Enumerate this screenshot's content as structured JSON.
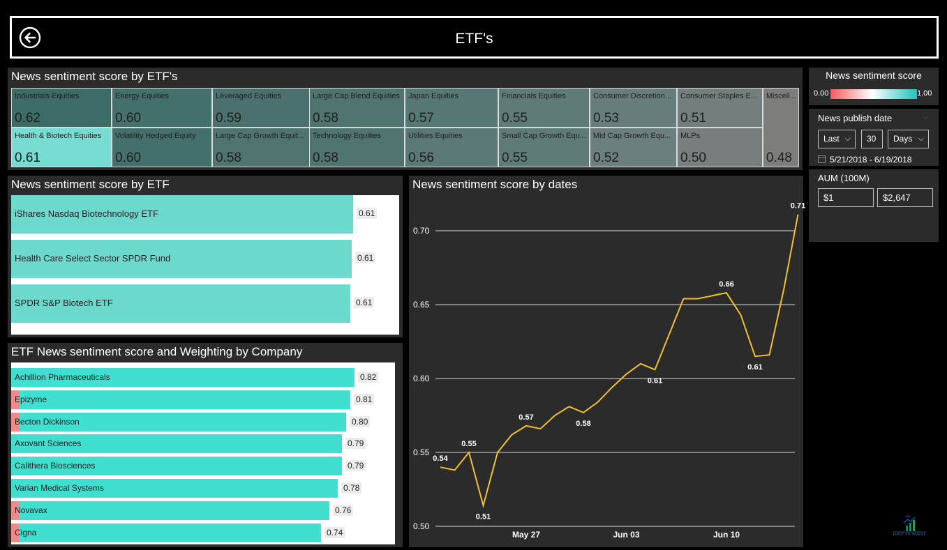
{
  "header": {
    "title": "ETF's"
  },
  "treemap": {
    "title": "News sentiment score by ETF's",
    "cells": [
      {
        "label": "Industrials Equities",
        "value": "0.62",
        "color": "#3d6b66"
      },
      {
        "label": "Energy Equities",
        "value": "0.60",
        "color": "#43706b"
      },
      {
        "label": "Leveraged Equities",
        "value": "0.59",
        "color": "#4a716d"
      },
      {
        "label": "Large Cap Blend Equities",
        "value": "0.58",
        "color": "#4f7470"
      },
      {
        "label": "Japan Equities",
        "value": "0.57",
        "color": "#567874"
      },
      {
        "label": "Financials Equities",
        "value": "0.55",
        "color": "#5f7b78"
      },
      {
        "label": "Consumer Discretion...",
        "value": "0.53",
        "color": "#687e7c"
      },
      {
        "label": "Consumer Staples E...",
        "value": "0.51",
        "color": "#737f7e"
      },
      {
        "label": "Miscell...",
        "value": "0.48",
        "color": "#7d7d7c"
      },
      {
        "label": "Health & Biotech Equities",
        "value": "0.61",
        "color": "#79dcd3"
      },
      {
        "label": "Volatility Hedged Equity",
        "value": "0.60",
        "color": "#43706b"
      },
      {
        "label": "Large Cap Growth Equit...",
        "value": "0.58",
        "color": "#4f7470"
      },
      {
        "label": "Technology Equities",
        "value": "0.58",
        "color": "#4f7470"
      },
      {
        "label": "Utilities Equities",
        "value": "0.56",
        "color": "#5a7976"
      },
      {
        "label": "Small Cap Growth Equ...",
        "value": "0.55",
        "color": "#5f7b78"
      },
      {
        "label": "Mid Cap Growth Equ...",
        "value": "0.52",
        "color": "#6c7e7d"
      },
      {
        "label": "MLPs",
        "value": "0.50",
        "color": "#787e7d"
      }
    ]
  },
  "etf_panel": {
    "title": "News sentiment score by ETF",
    "items": [
      {
        "label": "iShares Nasdaq Biotechnology ETF",
        "value": 0.61,
        "value_text": "0.61"
      },
      {
        "label": "Health Care Select Sector SPDR Fund",
        "value": 0.61,
        "value_text": "0.61"
      },
      {
        "label": "SPDR S&P Biotech ETF",
        "value": 0.61,
        "value_text": "0.61"
      }
    ]
  },
  "company_panel": {
    "title": "ETF News sentiment score and Weighting by Company",
    "items": [
      {
        "label": "Achillion Pharmaceuticals",
        "value": 0.82,
        "value_text": "0.82",
        "negative_marker": false
      },
      {
        "label": "Epizyme",
        "value": 0.81,
        "value_text": "0.81",
        "negative_marker": true
      },
      {
        "label": "Becton Dickinson",
        "value": 0.8,
        "value_text": "0.80",
        "negative_marker": true
      },
      {
        "label": "Axovant Sciences",
        "value": 0.79,
        "value_text": "0.79",
        "negative_marker": false
      },
      {
        "label": "Calithera Biosciences",
        "value": 0.79,
        "value_text": "0.79",
        "negative_marker": false
      },
      {
        "label": "Varian Medical Systems",
        "value": 0.78,
        "value_text": "0.78",
        "negative_marker": false
      },
      {
        "label": "Novavax",
        "value": 0.76,
        "value_text": "0.76",
        "negative_marker": true
      },
      {
        "label": "Cigna",
        "value": 0.74,
        "value_text": "0.74",
        "negative_marker": true
      }
    ]
  },
  "chart_data": {
    "type": "line",
    "title": "News sentiment score by dates",
    "xlabel": "",
    "ylabel": "",
    "ylim": [
      0.5,
      0.72
    ],
    "yticks": [
      "0.70",
      "0.65",
      "0.60",
      "0.55",
      "0.50"
    ],
    "xticks": [
      {
        "date": "2018-05-27",
        "label": "May 27"
      },
      {
        "date": "2018-06-03",
        "label": "Jun 03"
      },
      {
        "date": "2018-06-10",
        "label": "Jun 10"
      }
    ],
    "grid": true,
    "line_color": "#f2c12e",
    "points": [
      {
        "x": "2018-05-21",
        "y": 0.54,
        "label": "0.54",
        "label_pos": "above"
      },
      {
        "x": "2018-05-22",
        "y": 0.538,
        "label": "",
        "label_pos": ""
      },
      {
        "x": "2018-05-23",
        "y": 0.55,
        "label": "0.55",
        "label_pos": "above"
      },
      {
        "x": "2018-05-24",
        "y": 0.514,
        "label": "0.51",
        "label_pos": "below"
      },
      {
        "x": "2018-05-25",
        "y": 0.55,
        "label": "",
        "label_pos": ""
      },
      {
        "x": "2018-05-26",
        "y": 0.562,
        "label": "",
        "label_pos": ""
      },
      {
        "x": "2018-05-27",
        "y": 0.568,
        "label": "0.57",
        "label_pos": "above"
      },
      {
        "x": "2018-05-28",
        "y": 0.566,
        "label": "",
        "label_pos": ""
      },
      {
        "x": "2018-05-29",
        "y": 0.575,
        "label": "",
        "label_pos": ""
      },
      {
        "x": "2018-05-30",
        "y": 0.581,
        "label": "",
        "label_pos": ""
      },
      {
        "x": "2018-05-31",
        "y": 0.577,
        "label": "0.58",
        "label_pos": "below"
      },
      {
        "x": "2018-06-01",
        "y": 0.584,
        "label": "",
        "label_pos": ""
      },
      {
        "x": "2018-06-02",
        "y": 0.594,
        "label": "",
        "label_pos": ""
      },
      {
        "x": "2018-06-03",
        "y": 0.603,
        "label": "",
        "label_pos": ""
      },
      {
        "x": "2018-06-04",
        "y": 0.61,
        "label": "",
        "label_pos": ""
      },
      {
        "x": "2018-06-05",
        "y": 0.606,
        "label": "0.61",
        "label_pos": "below"
      },
      {
        "x": "2018-06-06",
        "y": 0.63,
        "label": "",
        "label_pos": ""
      },
      {
        "x": "2018-06-07",
        "y": 0.654,
        "label": "",
        "label_pos": ""
      },
      {
        "x": "2018-06-08",
        "y": 0.654,
        "label": "",
        "label_pos": ""
      },
      {
        "x": "2018-06-09",
        "y": 0.656,
        "label": "",
        "label_pos": ""
      },
      {
        "x": "2018-06-10",
        "y": 0.658,
        "label": "0.66",
        "label_pos": "above"
      },
      {
        "x": "2018-06-11",
        "y": 0.643,
        "label": "",
        "label_pos": ""
      },
      {
        "x": "2018-06-12",
        "y": 0.615,
        "label": "0.61",
        "label_pos": "below"
      },
      {
        "x": "2018-06-13",
        "y": 0.616,
        "label": "",
        "label_pos": ""
      },
      {
        "x": "2018-06-14",
        "y": 0.66,
        "label": "",
        "label_pos": ""
      },
      {
        "x": "2018-06-15",
        "y": 0.711,
        "label": "0.71",
        "label_pos": "above"
      }
    ]
  },
  "legend": {
    "title": "News sentiment score",
    "min": "0.00",
    "max": "1.00"
  },
  "date_filter": {
    "title": "News publish date",
    "period": "Last",
    "count": "30",
    "unit": "Days",
    "range": "5/21/2018 - 6/19/2018"
  },
  "aum_filter": {
    "title": "AUM (100M)",
    "min": "$1",
    "max": "$2,647"
  },
  "logo": {
    "text": "FIRST TO INVEST"
  }
}
